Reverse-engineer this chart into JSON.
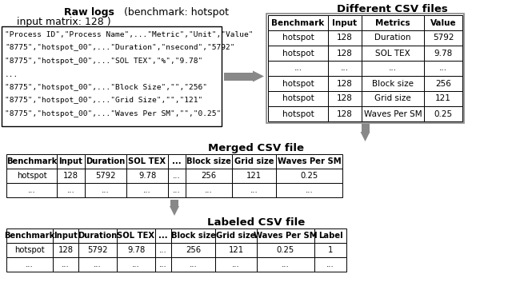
{
  "bg_color": "#ffffff",
  "raw_log_lines": [
    "\"Process ID\",\"Process Name\",...\"Metric\",\"Unit\",\"Value\"",
    "\"8775\",\"hotspot_00\",...\"Duration\",\"nsecond\",\"5792\"",
    "\"8775\",\"hotspot_00\",...\"SOL TEX\",\"%\",\"9.78\"",
    "...",
    "\"8775\",\"hotspot_00\",...\"Block Size\",\"\",\"256\"",
    "\"8775\",\"hotspot_00\",...\"Grid Size\",\"\",\"121\"",
    "\"8775\",\"hotspot_00\",...\"Waves Per SM\",\"\",\"0.25\""
  ],
  "csv_headers": [
    "Benchmark",
    "Input",
    "Metrics",
    "Value"
  ],
  "csv_rows": [
    [
      "hotspot",
      "128",
      "Duration",
      "5792"
    ],
    [
      "hotspot",
      "128",
      "SOL TEX",
      "9.78"
    ],
    [
      "...",
      "...",
      "...",
      "..."
    ],
    [
      "hotspot",
      "128",
      "Block size",
      "256"
    ],
    [
      "hotspot",
      "128",
      "Grid size",
      "121"
    ],
    [
      "hotspot",
      "128",
      "Waves Per SM",
      "0.25"
    ]
  ],
  "merged_headers": [
    "Benchmark",
    "Input",
    "Duration",
    "SOL TEX",
    "...",
    "Block size",
    "Grid size",
    "Waves Per SM"
  ],
  "merged_rows": [
    [
      "hotspot",
      "128",
      "5792",
      "9.78",
      "...",
      "256",
      "121",
      "0.25"
    ],
    [
      "...",
      "...",
      "...",
      "...",
      "...",
      "...",
      "...",
      "..."
    ]
  ],
  "labeled_headers": [
    "Benchmark",
    "Input",
    "Duration",
    "SOL TEX",
    "...",
    "Block size",
    "Grid size",
    "Waves Per SM",
    "Label"
  ],
  "labeled_rows": [
    [
      "hotspot",
      "128",
      "5792",
      "9.78",
      "...",
      "256",
      "121",
      "0.25",
      "1"
    ],
    [
      "...",
      "...",
      "...",
      "...",
      "...",
      "...",
      "...",
      "...",
      "..."
    ]
  ],
  "arrow_color": "#888888",
  "border_color": "#000000"
}
